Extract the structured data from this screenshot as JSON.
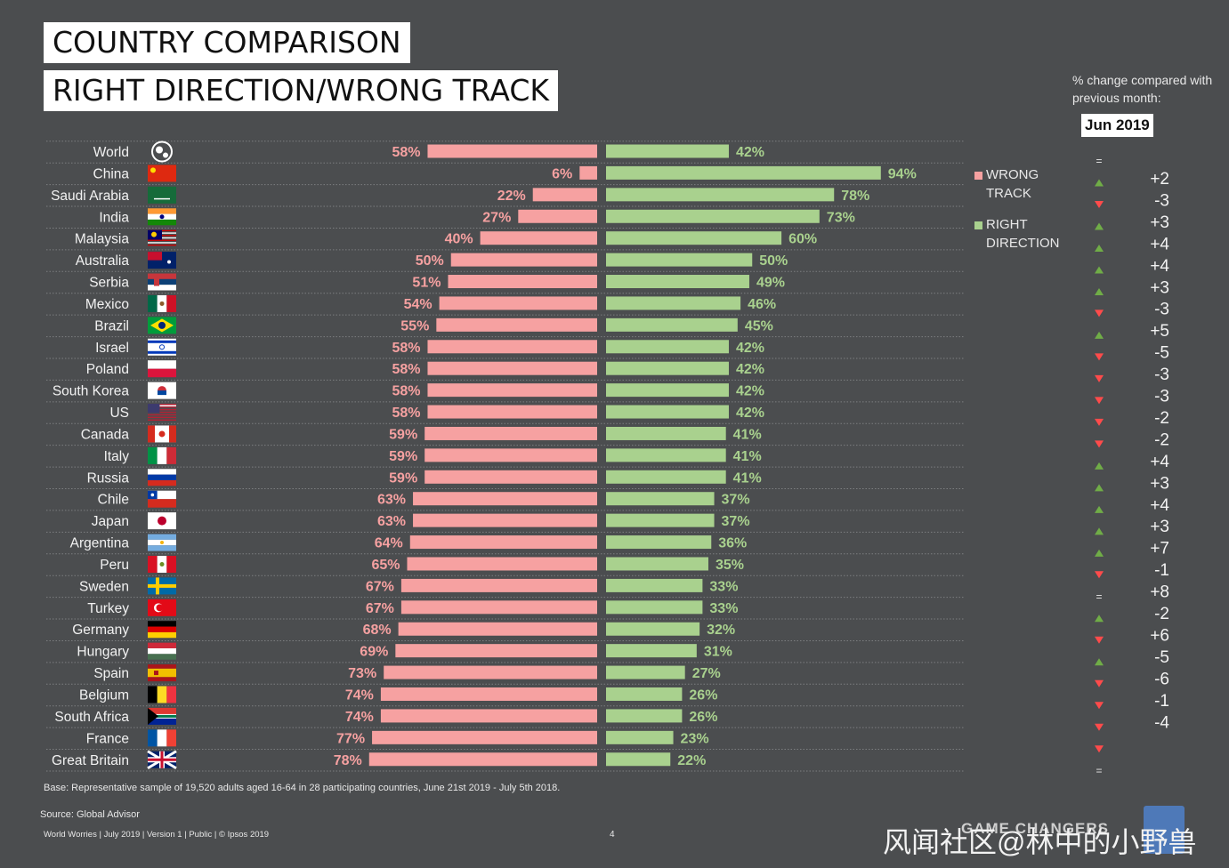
{
  "title_line1": "COUNTRY COMPARISON",
  "title_line2": "RIGHT DIRECTION/WRONG TRACK",
  "change_note": "% change compared with previous month:",
  "change_month": "Jun 2019",
  "legend": {
    "wrong": "WRONG TRACK",
    "right": "RIGHT DIRECTION"
  },
  "colors": {
    "background": "#4b4d4f",
    "wrong_bar": "#f6a1a1",
    "right_bar": "#a9d18e",
    "wrong_label": "#f6a1a1",
    "right_label": "#a9d18e",
    "up_arrow": "#70ad47",
    "down_arrow": "#ff4b4b"
  },
  "chart_data": {
    "type": "bar",
    "categories": [
      "World",
      "China",
      "Saudi Arabia",
      "India",
      "Malaysia",
      "Australia",
      "Serbia",
      "Mexico",
      "Brazil",
      "Israel",
      "Poland",
      "South Korea",
      "US",
      "Canada",
      "Italy",
      "Russia",
      "Chile",
      "Japan",
      "Argentina",
      "Peru",
      "Sweden",
      "Turkey",
      "Germany",
      "Hungary",
      "Spain",
      "Belgium",
      "South Africa",
      "France",
      "Great Britain"
    ],
    "series": [
      {
        "name": "WRONG TRACK",
        "values": [
          58,
          6,
          22,
          27,
          40,
          50,
          51,
          54,
          55,
          58,
          58,
          58,
          58,
          59,
          59,
          59,
          63,
          63,
          64,
          65,
          67,
          67,
          68,
          69,
          73,
          74,
          74,
          77,
          78
        ]
      },
      {
        "name": "RIGHT DIRECTION",
        "values": [
          42,
          94,
          78,
          73,
          60,
          50,
          49,
          46,
          45,
          42,
          42,
          42,
          42,
          41,
          41,
          41,
          37,
          37,
          36,
          35,
          33,
          33,
          32,
          31,
          27,
          26,
          26,
          23,
          22
        ]
      }
    ],
    "value_labels": {
      "wrong": [
        "58%",
        "6%",
        "22%",
        "27%",
        "40%",
        "50%",
        "51%",
        "54%",
        "55%",
        "58%",
        "58%",
        "58%",
        "58%",
        "59%",
        "59%",
        "59%",
        "63%",
        "63%",
        "64%",
        "65%",
        "67%",
        "67%",
        "68%",
        "69%",
        "73%",
        "74%",
        "74%",
        "77%",
        "78%"
      ],
      "right": [
        "42%",
        "94%",
        "78%",
        "73%",
        "60%",
        "50%",
        "49%",
        "46%",
        "45%",
        "42%",
        "42%",
        "42%",
        "42%",
        "41%",
        "41%",
        "41%",
        "37%",
        "37%",
        "36%",
        "35%",
        "33%",
        "33%",
        "32%",
        "31%",
        "27%",
        "26%",
        "26%",
        "23%",
        "22%"
      ]
    },
    "change_vs_previous_month": {
      "directions": [
        "=",
        "up",
        "down",
        "up",
        "up",
        "up",
        "up",
        "down",
        "up",
        "down",
        "down",
        "down",
        "down",
        "down",
        "up",
        "up",
        "up",
        "up",
        "up",
        "down",
        "=",
        "up",
        "down",
        "up",
        "down",
        "down",
        "down",
        "down",
        "="
      ],
      "values": [
        "+2",
        "-3",
        "+3",
        "+4",
        "+4",
        "+3",
        "-3",
        "+5",
        "-5",
        "-3",
        "-3",
        "-2",
        "-2",
        "+4",
        "+3",
        "+4",
        "+3",
        "+7",
        "-1",
        "+8",
        "-2",
        "+6",
        "-5",
        "-6",
        "-1",
        "-4"
      ]
    },
    "flags": [
      "world-globe",
      "china",
      "saudi-arabia",
      "india",
      "malaysia",
      "australia",
      "serbia",
      "mexico",
      "brazil",
      "israel",
      "poland",
      "south-korea",
      "us",
      "canada",
      "italy",
      "russia",
      "chile",
      "japan",
      "argentina",
      "peru",
      "sweden",
      "turkey",
      "germany",
      "hungary",
      "spain",
      "belgium",
      "south-africa",
      "france",
      "great-britain"
    ],
    "xlim": [
      0,
      100
    ]
  },
  "footer": {
    "base": "Base: Representative sample of 19,520 adults aged 16-64 in 28 participating countries, June 21st 2019 - July 5th 2018.",
    "source": "Source: Global Advisor",
    "left": "World Worries | July 2019 |  Version 1  |  Public | © Ipsos 2019",
    "page": "4",
    "brand": "GAME CHANGERS",
    "watermark": "风闻社区@林中的小野兽"
  }
}
